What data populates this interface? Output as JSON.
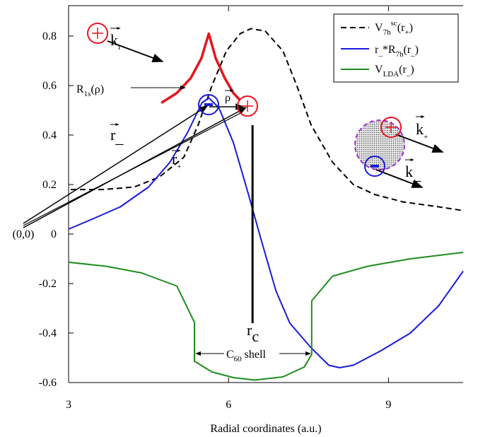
{
  "chart_data": {
    "type": "line",
    "x_label": "Radial coordinates (a.u.)",
    "xlim": [
      3,
      10.4
    ],
    "xticks": [
      3,
      6,
      9
    ],
    "ylim": [
      -0.6,
      0.92
    ],
    "yticks": [
      -0.6,
      -0.4,
      -0.2,
      0,
      0.2,
      0.4,
      0.6,
      0.8
    ],
    "grid": false,
    "legend": "upper right",
    "series": [
      {
        "name": [
          "V",
          "7h",
          "sc",
          "(r",
          "+",
          ")"
        ],
        "color": "#000000",
        "line_style": "dashed",
        "x": [
          3.04,
          3.64,
          4.23,
          4.7,
          5.16,
          5.43,
          5.69,
          5.96,
          6.22,
          6.42,
          6.69,
          7.02,
          7.28,
          7.55,
          7.95,
          8.34,
          8.74,
          9.27,
          9.94,
          10.4
        ],
        "values": [
          0.18,
          0.18,
          0.19,
          0.23,
          0.31,
          0.44,
          0.6,
          0.74,
          0.81,
          0.83,
          0.82,
          0.74,
          0.6,
          0.44,
          0.29,
          0.2,
          0.16,
          0.13,
          0.11,
          0.095
        ]
      },
      {
        "name": [
          "r",
          "_",
          "*R",
          "7h",
          "(r",
          "_",
          ")"
        ],
        "color": "#1a1adc",
        "line_style": "solid",
        "x": [
          3.0,
          3.44,
          3.97,
          4.5,
          4.9,
          5.23,
          5.5,
          5.63,
          5.82,
          6.09,
          6.36,
          6.62,
          6.89,
          7.15,
          7.55,
          7.88,
          8.08,
          8.34,
          8.87,
          9.41,
          9.94,
          10.4
        ],
        "values": [
          0.02,
          0.06,
          0.11,
          0.19,
          0.29,
          0.41,
          0.53,
          0.55,
          0.51,
          0.37,
          0.17,
          -0.03,
          -0.23,
          -0.36,
          -0.46,
          -0.53,
          -0.54,
          -0.53,
          -0.47,
          -0.4,
          -0.29,
          -0.15
        ]
      },
      {
        "name": [
          "V",
          "LDA",
          "(r",
          "_",
          ")"
        ],
        "color": "#1e8c1e",
        "line_style": "solid",
        "x": [
          3.0,
          3.7,
          4.37,
          5.03,
          5.36,
          5.36,
          5.69,
          6.09,
          6.49,
          7.02,
          7.42,
          7.56,
          7.56,
          7.95,
          8.61,
          9.41,
          10.4
        ],
        "values": [
          -0.114,
          -0.13,
          -0.157,
          -0.21,
          -0.357,
          -0.514,
          -0.557,
          -0.58,
          -0.59,
          -0.577,
          -0.537,
          -0.486,
          -0.27,
          -0.17,
          -0.13,
          -0.1,
          -0.074
        ]
      }
    ],
    "r1s_curve": {
      "color": "#e8141e",
      "x": [
        4.74,
        5.03,
        5.29,
        5.49,
        5.63,
        5.76,
        5.93,
        6.09,
        6.22
      ],
      "values": [
        0.53,
        0.57,
        0.63,
        0.71,
        0.81,
        0.71,
        0.63,
        0.57,
        0.54
      ]
    },
    "rc_line": {
      "x": 6.45,
      "values": [
        0.44,
        -0.36
      ]
    },
    "annotations": {
      "origin": "(0,0)",
      "r1s": [
        "R",
        "1s",
        "(ρ)"
      ],
      "rho": "ρ",
      "k_i": [
        "k",
        "i"
      ],
      "r_minus": [
        "r",
        "_"
      ],
      "r_plus": [
        "r",
        "+"
      ],
      "k_plus": [
        "k",
        "+"
      ],
      "k_minus": [
        "k",
        "_"
      ],
      "r_c": [
        "r",
        "c"
      ],
      "c60": [
        "C",
        "60",
        " shell"
      ]
    }
  }
}
